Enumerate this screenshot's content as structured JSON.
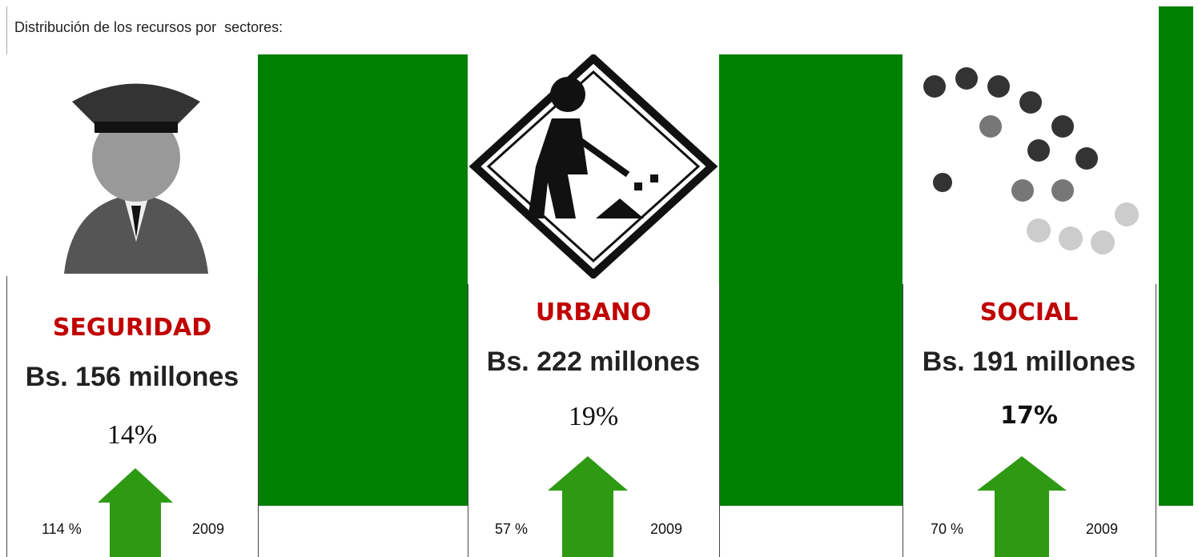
{
  "header": {
    "title": "Distribución de los recursos por  sectores:"
  },
  "sectors": [
    {
      "name": "SEGURIDAD",
      "amount": "Bs. 156 millones",
      "share": "14%",
      "growth": "114 %",
      "year": "2009"
    },
    {
      "name": "URBANO",
      "amount": "Bs. 222 millones",
      "share": "19%",
      "growth": "57 %",
      "year": "2009"
    },
    {
      "name": "SOCIAL",
      "amount": "Bs. 191 millones",
      "share": "17%",
      "growth": "70 %",
      "year": "2009"
    }
  ]
}
